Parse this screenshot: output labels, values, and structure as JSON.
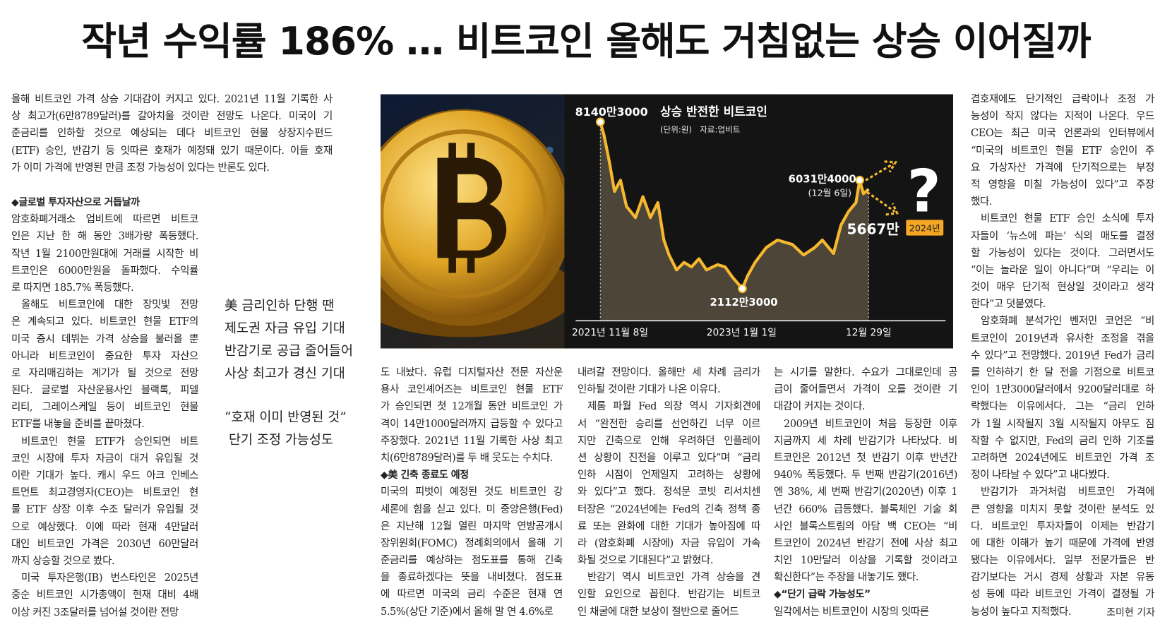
{
  "header": {
    "title": "작년 수익률 186% … 비트코인 올해도 거침없는 상승 이어질까"
  },
  "lead": {
    "lines": [
      "올해 비트코인 가격 상승 기대감이 커지고 있다. 2021년 11월 기록한 사",
      "상 최고가(6만8789달러)를 갈아치울 것이란 전망도 나온다. 미국이 기",
      "준금리를 인하할 것으로 예상되는 데다 비트코인 현물 상장지수펀드",
      "(ETF) 승인, 반감기 등 잇따른 호재가 예정돼 있기 때문이다. 이들 호재",
      "가 이미 가격에 반영된 만큼 조정 가능성이 있다는 반론도 있다."
    ]
  },
  "columns": [
    {
      "paragraphs": [
        {
          "lines": [
            "◆글로벌 투자자산으로 거듭날까"
          ]
        },
        {
          "lines": [
            "암호화폐거래소 업비트에 따르면 비트코",
            "인은 지난 한 해 동안 3배가량 폭등했다.",
            "작년 1월 2100만원대에 거래를 시작한 비",
            "트코인은 6000만원을 돌파했다. 수익률",
            "로 따지면 185.7% 폭등했다."
          ]
        },
        {
          "lines": [
            "올해도 비트코인에 대한 장밋빛 전망",
            "은 계속되고 있다. 비트코인 현물 ETF의",
            "미국 증시 데뷔는 가격 상승을 불러올 뿐",
            "아니라 비트코인이 중요한 투자 자산으",
            "로 자리매김하는 계기가 될 것으로 전망",
            "된다. 글로벌 자산운용사인 블랙록, 피델",
            "리티, 그레이스케일 등이 비트코인 현물",
            "ETF를 내놓을 준비를 끝마쳤다."
          ]
        },
        {
          "lines": [
            "비트코인 현물 ETF가 승인되면 비트",
            "코인 시장에 투자 자금이 대거 유입될 것",
            "이란 기대가 높다. 캐시 우드 아크 인베스",
            "트먼트 최고경영자(CEO)는 비트코인 현",
            "물 ETF 상장 이후 수조 달러가 유입될 것",
            "으로 예상했다. 이에 따라 현재 4만달러",
            "대인 비트코인 가격은 2030년 60만달러",
            "까지 상승할 것으로 봤다."
          ]
        },
        {
          "lines": [
            "미국 투자은행(IB) 번스타인은 2025년",
            "중순 비트코인 시가총액이 현재 대비 4배",
            "이상 커진 3조달러를 넘어설 것이란 전망"
          ]
        }
      ]
    },
    {
      "paragraphs": [
        {
          "lines": [
            "도 내놨다. 유럽 디지털자산 전문 자산운",
            "용사 코인셰어즈는 비트코인 현물 ETF",
            "가 승인되면 첫 12개월 동안 비트코인 가",
            "격이 14만1000달러까지 급등할 수 있다고",
            "주장했다. 2021년 11월 기록한 사상 최고",
            "치(6만8789달러)를 두 배 웃도는 수치다."
          ]
        },
        {
          "lines": [
            "◆美 긴축 종료도 예정"
          ]
        },
        {
          "lines": [
            "미국의 피벗이 예정된 것도 비트코인 강",
            "세론에 힘을 싣고 있다. 미 중앙은행(Fed)",
            "은 지난해 12월 열린 마지막 연방공개시",
            "장위원회(FOMC) 정례회의에서 올해 기",
            "준금리를 예상하는 점도표를 통해 긴축",
            "을 종료하겠다는 뜻을 내비쳤다. 점도표",
            "에 따르면 미국의 금리 수준은 현재 연",
            "5.5%(상단 기준)에서 올해 말 연 4.6%로"
          ]
        }
      ]
    },
    {
      "paragraphs": [
        {
          "lines": [
            "내려갈 전망이다. 올해만 세 차례 금리가",
            "인하될 것이란 기대가 나온 이유다."
          ]
        },
        {
          "lines": [
            "제롬 파월 Fed 의장 역시 기자회견에",
            "서 “완전한 승리를 선언하긴 너무 이르",
            "지만 긴축으로 인해 우려하던 인플레이",
            "션 상황이 진전을 이루고 있다”며 “금리",
            "인하 시점이 언제일지 고려하는 상황에",
            "와 있다”고 했다. 정석문 코빗 리서치센",
            "터장은 “2024년에는 Fed의 긴축 정책 종",
            "료 또는 완화에 대한 기대가 높아짐에 따",
            "라 (암호화폐 시장에) 자금 유입이 가속",
            "화될 것으로 기대된다”고 밝혔다."
          ]
        },
        {
          "lines": [
            "반감기 역시 비트코인 가격 상승을 견",
            "인할 요인으로 꼽힌다. 반감기는 비트코",
            "인 채굴에 대한 보상이 절반으로 줄어드"
          ]
        }
      ]
    },
    {
      "paragraphs": [
        {
          "lines": [
            "는 시기를 말한다. 수요가 그대로인데 공",
            "급이 줄어들면서 가격이 오를 것이란 기",
            "대감이 커지는 것이다."
          ]
        },
        {
          "lines": [
            "2009년 비트코인이 처음 등장한 이후",
            "지금까지 세 차례 반감기가 나타났다. 비",
            "트코인은 2012년 첫 반감기 이후 반년간",
            "940% 폭등했다. 두 번째 반감기(2016년)",
            "엔 38%, 세 번째 반감기(2020년) 이후 1",
            "년간 660% 급등했다. 블록체인 기술 회",
            "사인 블록스트림의 아담 백 CEO는 “비",
            "트코인이 2024년 반감기 전에 사상 최고",
            "치인 10만달러 이상을 기록할 것이라고",
            "확신한다”는 주장을 내놓기도 했다."
          ]
        },
        {
          "lines": [
            "◆“단기 급락 가능성도”"
          ]
        },
        {
          "lines": [
            "일각에서는 비트코인이 시장의 잇따른"
          ]
        }
      ]
    },
    {
      "paragraphs": [
        {
          "lines": [
            "겹호재에도 단기적인 급락이나 조정 가",
            "능성이 작지 않다는 지적이 나온다. 우드",
            "CEO는 최근 미국 언론과의 인터뷰에서",
            "“미국의 비트코인 현물 ETF 승인이 주",
            "요 가상자산 가격에 단기적으로는 부정",
            "적 영향을 미칠 가능성이 있다”고 주장",
            "했다."
          ]
        },
        {
          "lines": [
            "비트코인 현물 ETF 승인 소식에 투자",
            "자들이 ‘뉴스에 파는’ 식의 매도를 결정",
            "할 가능성이 있다는 것이다. 그러면서도",
            "“이는 놀라운 일이 아니다”며 “우리는 이",
            "것이 매우 단기적 현상일 것이라고 생각",
            "한다”고 덧붙였다."
          ]
        },
        {
          "lines": [
            "암호화폐 분석가인 벤저민 코언은 “비",
            "트코인이 2019년과 유사한 조정을 겪을",
            "수 있다”고 전망했다. 2019년 Fed가 금리",
            "를 인하하기 한 달 전을 기점으로 비트코",
            "인이 1만3000달러에서 9200달러대로 하",
            "락했다는 이유에서다. 그는 “금리 인하",
            "가 1월 시작될지 3월 시작될지 아무도 짐",
            "작할 수 없지만, Fed의 금리 인하 기조를",
            "고려하면 2024년에도 비트코인 가격 조",
            "정이 나타날 수 있다”고 내다봤다."
          ]
        },
        {
          "lines": [
            "반감기가 과거처럼 비트코인 가격에",
            "큰 영향을 미치지 못할 것이란 분석도 있",
            "다. 비트코인 투자자들이 이제는 반감기",
            "에 대한 이해가 높기 때문에 가격에 반영",
            "됐다는 이유에서다. 일부 전문가들은 반",
            "감기보다는 거시 경제 상황과 자본 유동",
            "성 등에 따라 비트코인 가격이 결정될 가",
            "능성이 높다고 지적했다."
          ]
        }
      ]
    }
  ],
  "pull_quote": {
    "groups": [
      {
        "lines": [
          "美 금리인하 단행 땐",
          "제도권 자금 유입 기대",
          "반감기로 공급 줄어들어",
          "사상 최고가 경신 기대"
        ]
      },
      {
        "lines": [
          "“호재 이미 반영된 것”",
          "단기 조정 가능성도"
        ]
      }
    ]
  },
  "figure": {
    "title": "상승 반전한 비트코인",
    "unit_source": "(단위:원)   자료:업비트",
    "peak": "8140만3000",
    "recent": "6031만4000",
    "recent_date": "(12월 6일)",
    "current": "5667만",
    "question": "?",
    "year_badge": "2024년",
    "low": "2112만3000",
    "x_labels": [
      "2021년 11월 8일",
      "2023년 1월 1일",
      "12월 29일"
    ]
  },
  "byline": "조미현 기자"
}
